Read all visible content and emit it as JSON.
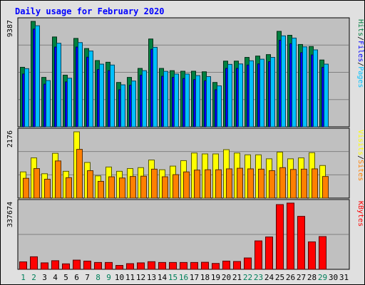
{
  "chart_data": {
    "type": "bar",
    "title": "Daily usage for February 2020",
    "categories": [
      "1",
      "2",
      "3",
      "4",
      "5",
      "6",
      "7",
      "8",
      "9",
      "10",
      "11",
      "12",
      "13",
      "14",
      "15",
      "16",
      "17",
      "18",
      "19",
      "20",
      "21",
      "22",
      "23",
      "24",
      "25",
      "26",
      "27",
      "28",
      "29",
      "30",
      "31"
    ],
    "weekend_days": [
      "1",
      "2",
      "8",
      "9",
      "15",
      "16",
      "22",
      "23",
      "29"
    ],
    "panels": [
      {
        "id": "hits",
        "y_max_label": "9387",
        "ylim": [
          0,
          9387
        ],
        "legend": [
          "Pages",
          "/",
          "Files",
          "/",
          "Hits"
        ],
        "legend_colors": [
          "#00c0ff",
          "#000000",
          "#0000ff",
          "#000000",
          "#008040"
        ],
        "series": [
          {
            "name": "Hits",
            "color": "#008040",
            "values": [
              5300,
              9387,
              4400,
              8000,
              4600,
              7870,
              6970,
              5900,
              5750,
              3950,
              4400,
              5200,
              7820,
              5200,
              5000,
              4950,
              4950,
              4900,
              3950,
              5850,
              5850,
              6180,
              6300,
              6430,
              8500,
              8150,
              7330,
              7150,
              5950,
              0,
              0
            ]
          },
          {
            "name": "Files",
            "color": "#0000ff",
            "values": [
              4700,
              8700,
              3800,
              7100,
              4000,
              7100,
              6200,
              5100,
              5000,
              3300,
              3700,
              4600,
              6900,
              4500,
              4400,
              4300,
              4200,
              4100,
              3300,
              5200,
              5200,
              5500,
              5600,
              5800,
              7700,
              7400,
              6600,
              6400,
              5300,
              0,
              0
            ]
          },
          {
            "name": "Pages",
            "color": "#00c0ff",
            "values": [
              5180,
              9000,
              4120,
              7440,
              4330,
              7500,
              6750,
              5580,
              5500,
              3740,
              4080,
              5000,
              7080,
              4940,
              4700,
              4700,
              4560,
              4470,
              3650,
              5560,
              5600,
              5880,
              6020,
              6180,
              8100,
              7900,
              7120,
              6850,
              5580,
              0,
              0
            ]
          }
        ]
      },
      {
        "id": "visits",
        "y_max_label": "2176",
        "ylim": [
          0,
          2176
        ],
        "legend": [
          "Sites",
          "/",
          "Visits"
        ],
        "legend_colors": [
          "#ff8000",
          "#000000",
          "#ffff00"
        ],
        "series": [
          {
            "name": "Visits",
            "color": "#ffff00",
            "values": [
              860,
              1320,
              800,
              1470,
              880,
              2176,
              1170,
              730,
              1020,
              880,
              970,
              1000,
              1250,
              930,
              1050,
              1230,
              1480,
              1450,
              1450,
              1590,
              1480,
              1420,
              1420,
              1290,
              1510,
              1290,
              1320,
              1490,
              1070,
              0,
              0
            ]
          },
          {
            "name": "Sites",
            "color": "#ff8000",
            "values": [
              650,
              970,
              620,
              1220,
              670,
              1600,
              900,
              550,
              700,
              660,
              710,
              720,
              950,
              700,
              770,
              860,
              920,
              930,
              930,
              960,
              980,
              960,
              950,
              900,
              1000,
              940,
              950,
              960,
              710,
              0,
              0
            ]
          }
        ]
      },
      {
        "id": "kbytes",
        "y_max_label": "337674",
        "ylim": [
          0,
          337674
        ],
        "legend": [
          "KBytes"
        ],
        "legend_colors": [
          "#ff0000"
        ],
        "series": [
          {
            "name": "KBytes",
            "color": "#ff0000",
            "values": [
              38000,
              64000,
              33000,
              44000,
              28000,
              47000,
              42000,
              35000,
              35000,
              20000,
              29000,
              33000,
              39000,
              35000,
              35000,
              35000,
              35000,
              36000,
              30000,
              42000,
              40000,
              58000,
              145000,
              165000,
              330000,
              337674,
              270000,
              140000,
              167000,
              0,
              0
            ]
          }
        ]
      }
    ]
  }
}
